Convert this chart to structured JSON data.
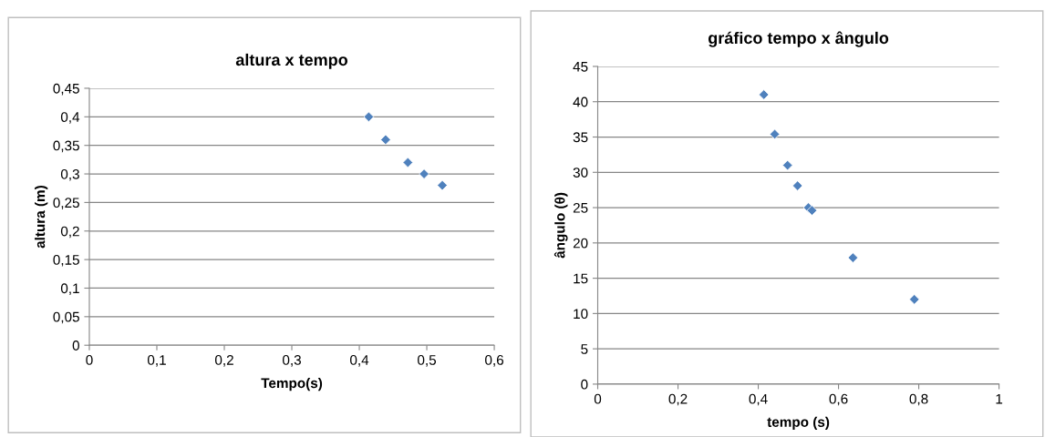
{
  "chart_data": [
    {
      "type": "scatter",
      "title": "altura x tempo",
      "xlabel": "Tempo(s)",
      "ylabel": "altura (m)",
      "marker": "diamond",
      "grid": "y",
      "legend": false,
      "x": [
        0.414,
        0.439,
        0.472,
        0.496,
        0.523
      ],
      "series": [
        {
          "color": "#4f81bd",
          "values": [
            0.4,
            0.36,
            0.32,
            0.3,
            0.28
          ]
        }
      ],
      "xlim": [
        0,
        0.6
      ],
      "xticks": [
        0,
        {
          "value": 0.1,
          "label": "0,1"
        },
        {
          "value": 0.2,
          "label": "0,2"
        },
        {
          "value": 0.3,
          "label": "0,3"
        },
        {
          "value": 0.4,
          "label": "0,4"
        },
        {
          "value": 0.5,
          "label": "0,5"
        },
        {
          "value": 0.6,
          "label": "0,6"
        }
      ],
      "ylim": [
        0,
        0.45
      ],
      "yticks": [
        0,
        {
          "value": 0.05,
          "label": "0,05"
        },
        {
          "value": 0.1,
          "label": "0,1"
        },
        {
          "value": 0.15,
          "label": "0,15"
        },
        {
          "value": 0.2,
          "label": "0,2"
        },
        {
          "value": 0.25,
          "label": "0,25"
        },
        {
          "value": 0.3,
          "label": "0,3"
        },
        {
          "value": 0.35,
          "label": "0,35"
        },
        {
          "value": 0.4,
          "label": "0,4"
        },
        {
          "value": 0.45,
          "label": "0,45"
        }
      ]
    },
    {
      "type": "scatter",
      "title": "gráfico tempo x ângulo",
      "xlabel": "tempo (s)",
      "ylabel": "ângulo (θ)",
      "marker": "diamond",
      "grid": "y",
      "legend": false,
      "x": [
        0.414,
        0.441,
        0.473,
        0.498,
        0.525,
        0.534,
        0.636,
        0.789
      ],
      "series": [
        {
          "color": "#4f81bd",
          "values": [
            41,
            35.4,
            31,
            28.1,
            25,
            24.6,
            17.9,
            12
          ]
        }
      ],
      "xlim": [
        0,
        1
      ],
      "xticks": [
        0,
        {
          "value": 0.2,
          "label": "0,2"
        },
        {
          "value": 0.4,
          "label": "0,4"
        },
        {
          "value": 0.6,
          "label": "0,6"
        },
        {
          "value": 0.8,
          "label": "0,8"
        },
        1
      ],
      "ylim": [
        0,
        45
      ],
      "yticks": [
        0,
        5,
        10,
        15,
        20,
        25,
        30,
        35,
        40,
        45
      ]
    }
  ]
}
